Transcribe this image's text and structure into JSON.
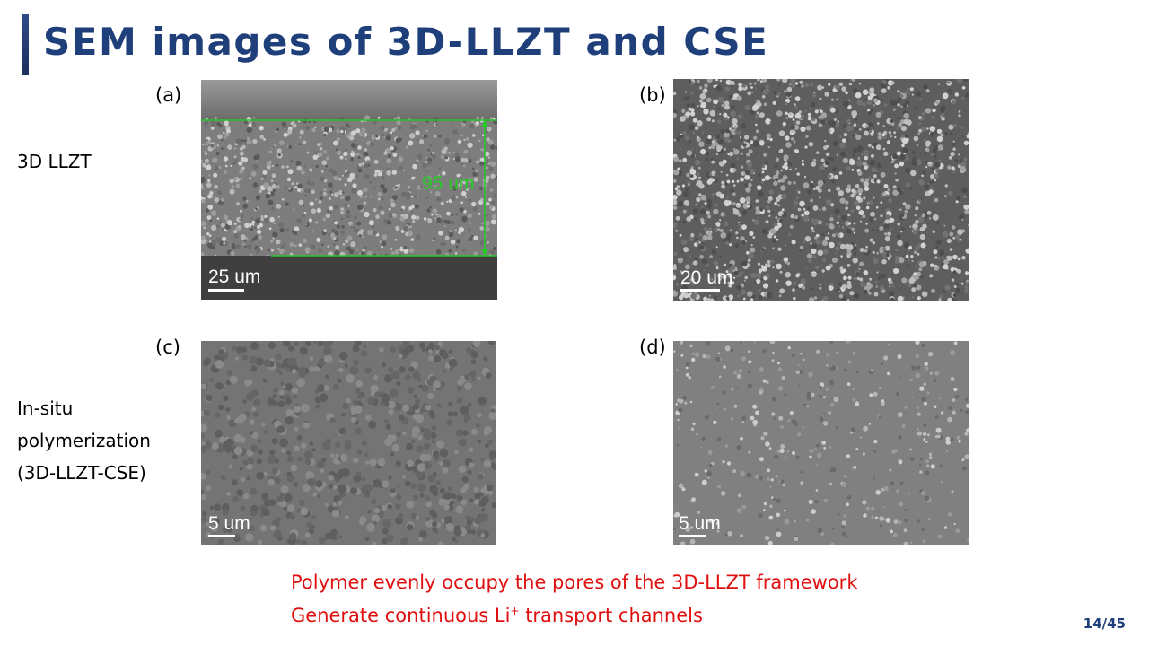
{
  "title": "SEM images of 3D-LLZT and CSE",
  "colors": {
    "title": "#1f3f7a",
    "accent_bar": "#2d4a86",
    "highlight_text": "#e01010",
    "measure_green": "#22cc22"
  },
  "rows": [
    {
      "label_lines": [
        "3D LLZT"
      ]
    },
    {
      "label_lines": [
        "In-situ",
        "polymerization",
        "(3D-LLZT-CSE)"
      ]
    }
  ],
  "panels": [
    {
      "tag": "(a)",
      "scale_bar": "25 um",
      "thickness_annotation": "95 um"
    },
    {
      "tag": "(b)",
      "scale_bar": "20 um"
    },
    {
      "tag": "(c)",
      "scale_bar": "5 um"
    },
    {
      "tag": "(d)",
      "scale_bar": "5 um"
    }
  ],
  "notes": {
    "line1": "Polymer evenly occupy the pores of the 3D-LLZT framework",
    "line2_prefix": "Generate continuous Li",
    "line2_sup": "+",
    "line2_suffix": " transport channels"
  },
  "page_number": "14/45"
}
